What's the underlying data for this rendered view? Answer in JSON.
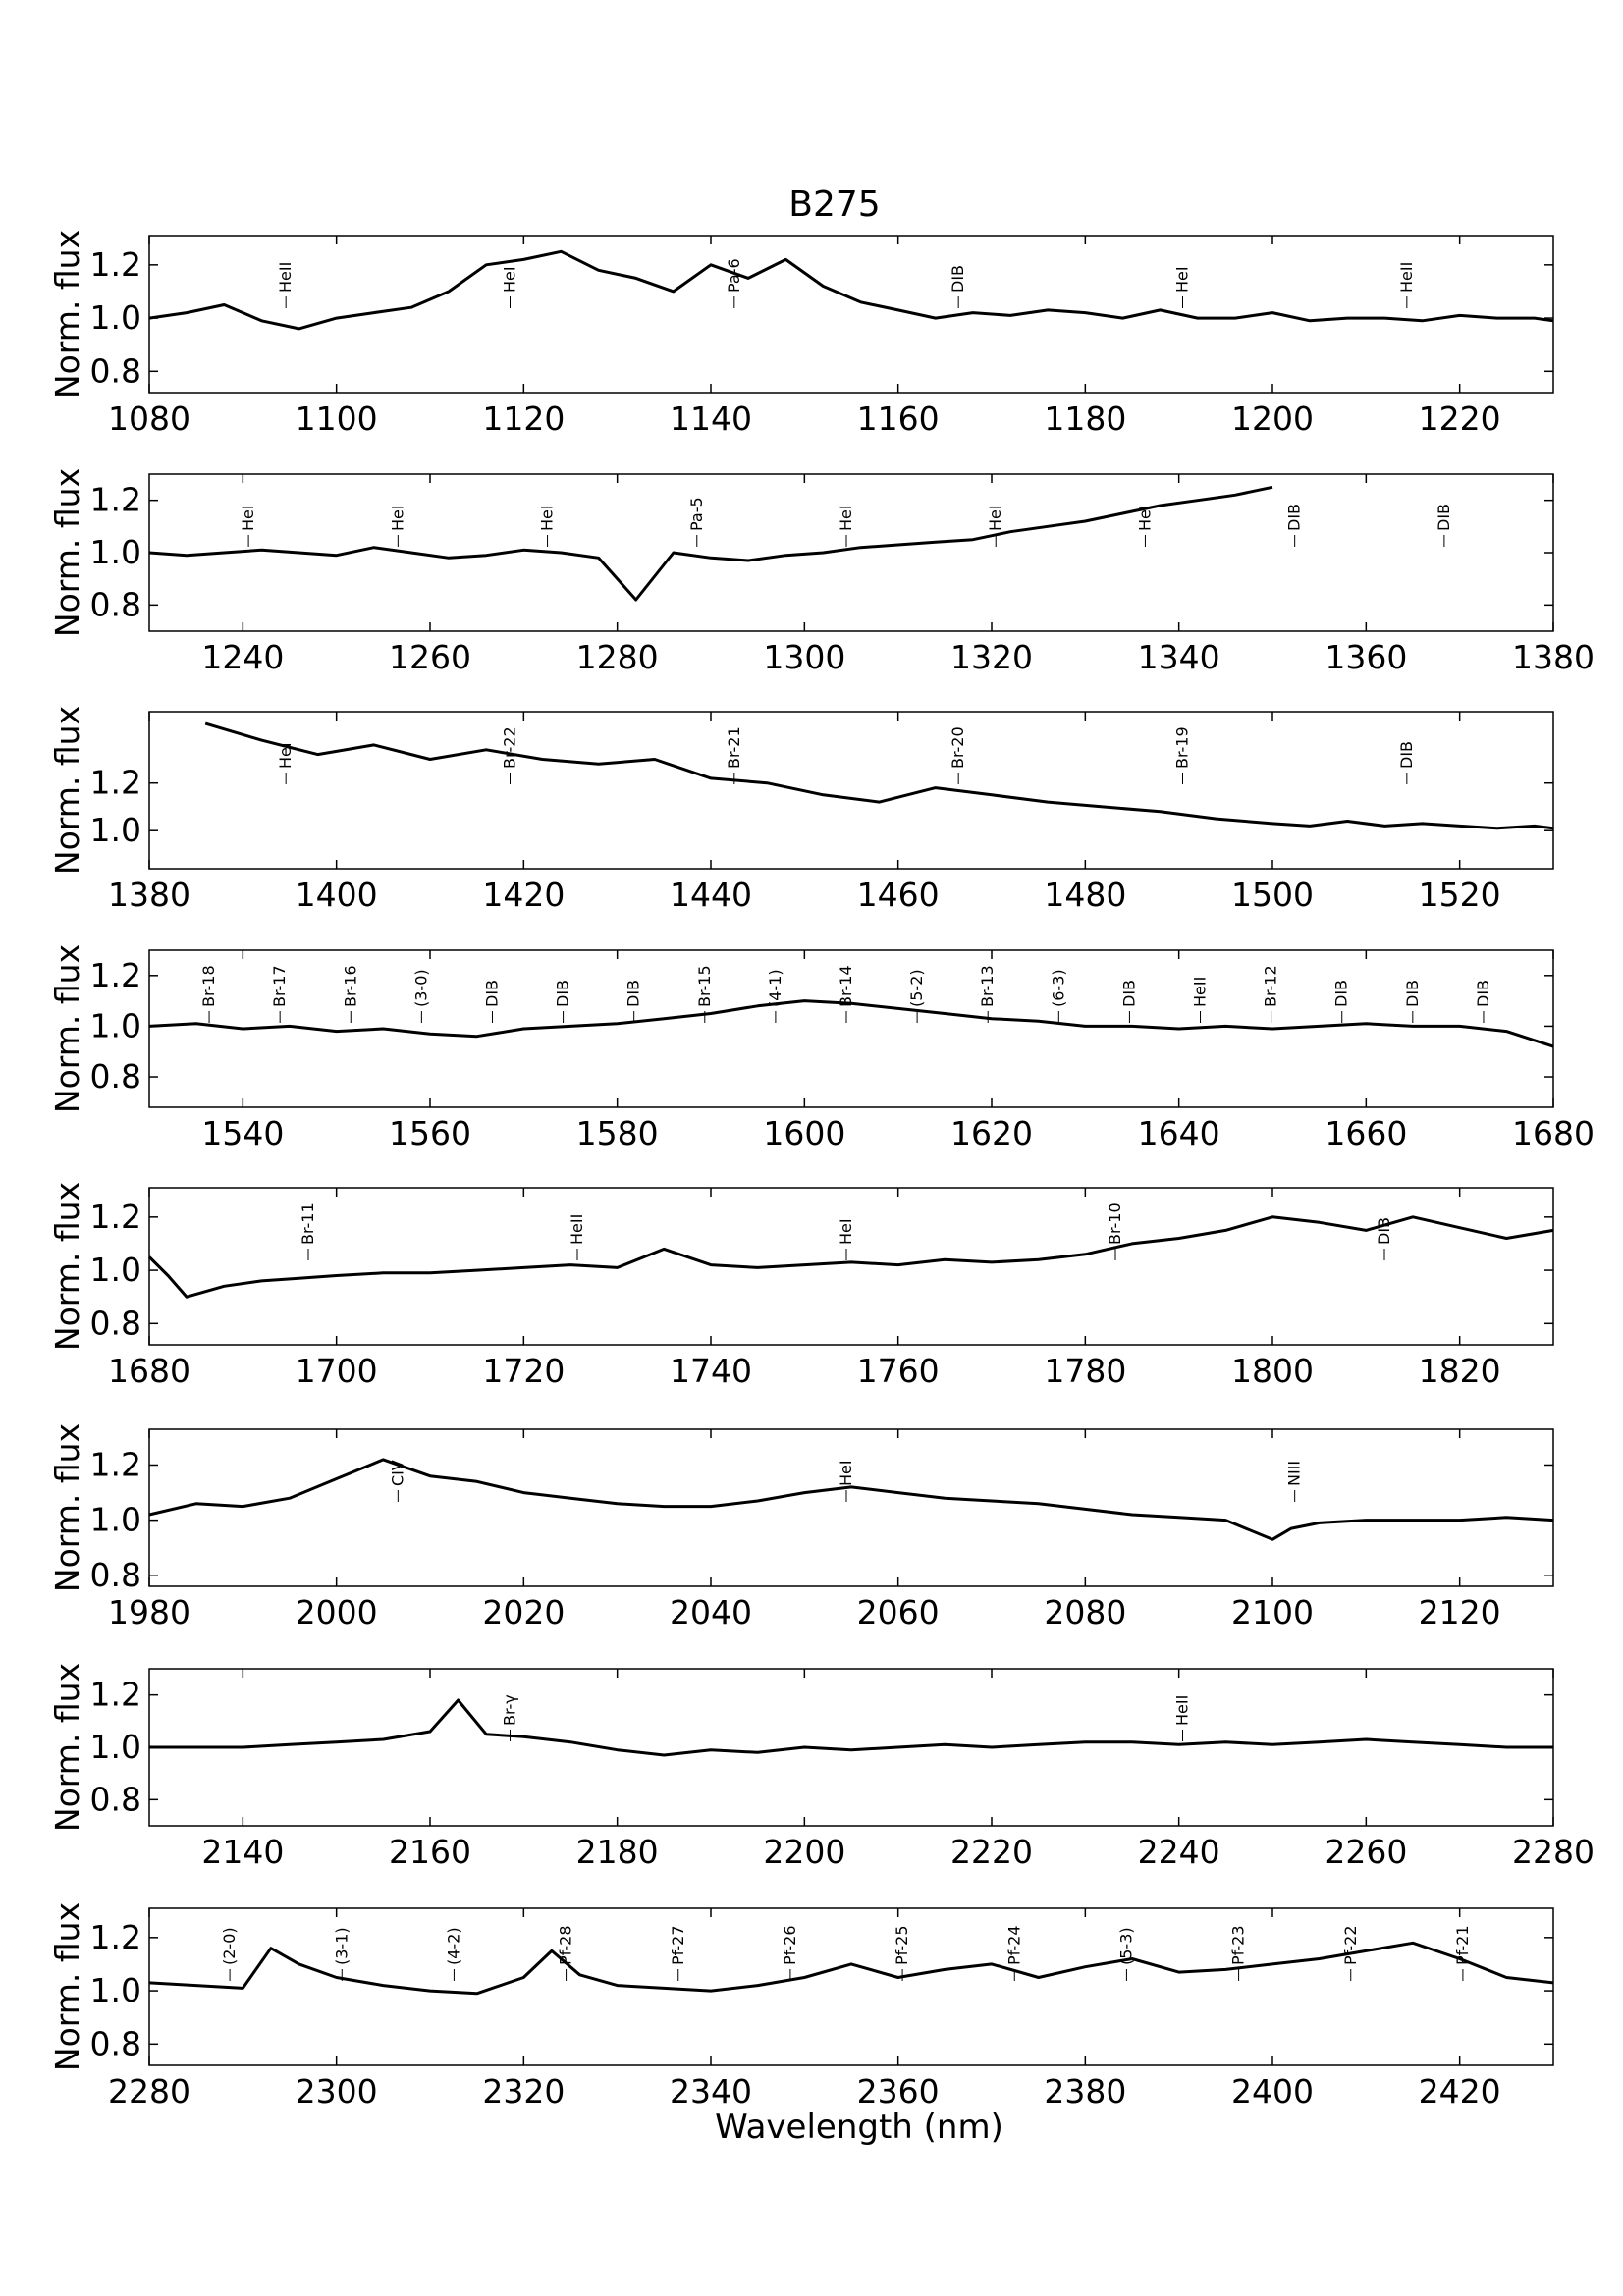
{
  "chart_data": {
    "type": "line",
    "title": "B275",
    "xlabel": "Wavelength (nm)",
    "ylabel": "Norm. flux",
    "grid": false,
    "line_color": "#000000",
    "panels": [
      {
        "xlim": [
          1080,
          1230
        ],
        "ylim": [
          0.72,
          1.31
        ],
        "xticks": [
          "1080",
          "1100",
          "1120",
          "1140",
          "1160",
          "1180",
          "1200",
          "1220"
        ],
        "yticks": [
          "0.8",
          "1.0",
          "1.2"
        ],
        "x": [
          1080,
          1084,
          1088,
          1092,
          1096,
          1100,
          1104,
          1108,
          1112,
          1116,
          1120,
          1124,
          1128,
          1132,
          1136,
          1140,
          1144,
          1148,
          1152,
          1156,
          1160,
          1164,
          1168,
          1172,
          1176,
          1180,
          1184,
          1188,
          1192,
          1196,
          1200,
          1204,
          1208,
          1212,
          1216,
          1220,
          1224,
          1228,
          1230
        ],
        "y": [
          1.0,
          1.02,
          1.05,
          0.99,
          0.96,
          1.0,
          1.02,
          1.04,
          1.1,
          1.2,
          1.22,
          1.25,
          1.18,
          1.15,
          1.1,
          1.2,
          1.15,
          1.22,
          1.12,
          1.06,
          1.03,
          1.0,
          1.02,
          1.01,
          1.03,
          1.02,
          1.0,
          1.03,
          1.0,
          1.0,
          1.02,
          0.99,
          1.0,
          1.0,
          0.99,
          1.01,
          1.0,
          1.0,
          0.99
        ],
        "annotations": [
          "HeII",
          "HeI",
          "Pa-6",
          "DIB",
          "HeI",
          "HeII"
        ]
      },
      {
        "xlim": [
          1230,
          1380
        ],
        "ylim": [
          0.7,
          1.3
        ],
        "xticks": [
          "1240",
          "1260",
          "1280",
          "1300",
          "1320",
          "1340",
          "1360",
          "1380"
        ],
        "yticks": [
          "0.8",
          "1.0",
          "1.2"
        ],
        "x": [
          1230,
          1234,
          1238,
          1242,
          1246,
          1250,
          1254,
          1258,
          1262,
          1266,
          1270,
          1274,
          1278,
          1282,
          1286,
          1290,
          1294,
          1298,
          1302,
          1306,
          1310,
          1314,
          1318,
          1322,
          1326,
          1330,
          1334,
          1338,
          1342,
          1346,
          1350
        ],
        "y": [
          1.0,
          0.99,
          1.0,
          1.01,
          1.0,
          0.99,
          1.02,
          1.0,
          0.98,
          0.99,
          1.01,
          1.0,
          0.98,
          0.82,
          1.0,
          0.98,
          0.97,
          0.99,
          1.0,
          1.02,
          1.03,
          1.04,
          1.05,
          1.08,
          1.1,
          1.12,
          1.15,
          1.18,
          1.2,
          1.22,
          1.25
        ],
        "annotations": [
          "HeI",
          "HeI",
          "HeI",
          "Pa-5",
          "HeI",
          "HeI",
          "HeI",
          "DIB",
          "DIB"
        ]
      },
      {
        "xlim": [
          1380,
          1530
        ],
        "ylim": [
          0.84,
          1.5
        ],
        "xticks": [
          "1380",
          "1400",
          "1420",
          "1440",
          "1460",
          "1480",
          "1500",
          "1520"
        ],
        "yticks": [
          "1.0",
          "1.2"
        ],
        "x": [
          1386,
          1392,
          1398,
          1404,
          1410,
          1416,
          1422,
          1428,
          1434,
          1440,
          1446,
          1452,
          1458,
          1464,
          1470,
          1476,
          1482,
          1488,
          1494,
          1500,
          1504,
          1508,
          1512,
          1516,
          1520,
          1524,
          1528,
          1530
        ],
        "y": [
          1.45,
          1.38,
          1.32,
          1.36,
          1.3,
          1.34,
          1.3,
          1.28,
          1.3,
          1.22,
          1.2,
          1.15,
          1.12,
          1.18,
          1.15,
          1.12,
          1.1,
          1.08,
          1.05,
          1.03,
          1.02,
          1.04,
          1.02,
          1.03,
          1.02,
          1.01,
          1.02,
          1.01
        ],
        "annotations": [
          "HeI",
          "Br-22",
          "Br-21",
          "Br-20",
          "Br-19",
          "DIB"
        ]
      },
      {
        "xlim": [
          1530,
          1680
        ],
        "ylim": [
          0.68,
          1.3
        ],
        "xticks": [
          "1540",
          "1560",
          "1580",
          "1600",
          "1620",
          "1640",
          "1660",
          "1680"
        ],
        "yticks": [
          "0.8",
          "1.0",
          "1.2"
        ],
        "x": [
          1530,
          1535,
          1540,
          1545,
          1550,
          1555,
          1560,
          1565,
          1570,
          1575,
          1580,
          1585,
          1590,
          1595,
          1600,
          1605,
          1610,
          1615,
          1620,
          1625,
          1630,
          1635,
          1640,
          1645,
          1650,
          1655,
          1660,
          1665,
          1670,
          1675,
          1680
        ],
        "y": [
          1.0,
          1.01,
          0.99,
          1.0,
          0.98,
          0.99,
          0.97,
          0.96,
          0.99,
          1.0,
          1.01,
          1.03,
          1.05,
          1.08,
          1.1,
          1.09,
          1.07,
          1.05,
          1.03,
          1.02,
          1.0,
          1.0,
          0.99,
          1.0,
          0.99,
          1.0,
          1.01,
          1.0,
          1.0,
          0.98,
          0.92
        ],
        "annotations": [
          "Br-18",
          "Br-17",
          "Br-16",
          "(3-0)",
          "DIB",
          "DIB",
          "DIB",
          "Br-15",
          "(4-1)",
          "Br-14",
          "(5-2)",
          "Br-13",
          "(6-3)",
          "DIB",
          "HeII",
          "Br-12",
          "DIB",
          "DIB",
          "DIB"
        ]
      },
      {
        "xlim": [
          1680,
          1830
        ],
        "ylim": [
          0.72,
          1.31
        ],
        "xticks": [
          "1680",
          "1700",
          "1720",
          "1740",
          "1760",
          "1780",
          "1800",
          "1820"
        ],
        "yticks": [
          "0.8",
          "1.0",
          "1.2"
        ],
        "x": [
          1680,
          1682,
          1684,
          1688,
          1692,
          1696,
          1700,
          1705,
          1710,
          1715,
          1720,
          1725,
          1730,
          1735,
          1740,
          1745,
          1750,
          1755,
          1760,
          1765,
          1770,
          1775,
          1780,
          1785,
          1790,
          1795,
          1800,
          1805,
          1810,
          1815,
          1820,
          1825,
          1830
        ],
        "y": [
          1.05,
          0.98,
          0.9,
          0.94,
          0.96,
          0.97,
          0.98,
          0.99,
          0.99,
          1.0,
          1.01,
          1.02,
          1.01,
          1.08,
          1.02,
          1.01,
          1.02,
          1.03,
          1.02,
          1.04,
          1.03,
          1.04,
          1.06,
          1.1,
          1.12,
          1.15,
          1.2,
          1.18,
          1.15,
          1.2,
          1.16,
          1.12,
          1.15
        ],
        "annotations": [
          "Br-11",
          "HeII",
          "HeI",
          "Br-10",
          "DIB"
        ]
      },
      {
        "xlim": [
          1980,
          2130
        ],
        "ylim": [
          0.76,
          1.33
        ],
        "xticks": [
          "1980",
          "2000",
          "2020",
          "2040",
          "2060",
          "2080",
          "2100",
          "2120"
        ],
        "yticks": [
          "0.8",
          "1.0",
          "1.2"
        ],
        "x": [
          1980,
          1985,
          1990,
          1995,
          2000,
          2005,
          2010,
          2015,
          2020,
          2025,
          2030,
          2035,
          2040,
          2045,
          2050,
          2055,
          2060,
          2065,
          2070,
          2075,
          2080,
          2085,
          2090,
          2095,
          2100,
          2102,
          2105,
          2110,
          2115,
          2120,
          2125,
          2130
        ],
        "y": [
          1.02,
          1.06,
          1.05,
          1.08,
          1.15,
          1.22,
          1.16,
          1.14,
          1.1,
          1.08,
          1.06,
          1.05,
          1.05,
          1.07,
          1.1,
          1.12,
          1.1,
          1.08,
          1.07,
          1.06,
          1.04,
          1.02,
          1.01,
          1.0,
          0.93,
          0.97,
          0.99,
          1.0,
          1.0,
          1.0,
          1.01,
          1.0
        ],
        "annotations": [
          "CIV",
          "HeI",
          "NIII"
        ]
      },
      {
        "xlim": [
          2130,
          2280
        ],
        "ylim": [
          0.7,
          1.3
        ],
        "xticks": [
          "2140",
          "2160",
          "2180",
          "2200",
          "2220",
          "2240",
          "2260",
          "2280"
        ],
        "yticks": [
          "0.8",
          "1.0",
          "1.2"
        ],
        "x": [
          2130,
          2135,
          2140,
          2145,
          2150,
          2155,
          2160,
          2163,
          2166,
          2170,
          2175,
          2180,
          2185,
          2190,
          2195,
          2200,
          2205,
          2210,
          2215,
          2220,
          2225,
          2230,
          2235,
          2240,
          2245,
          2250,
          2255,
          2260,
          2265,
          2270,
          2275,
          2280
        ],
        "y": [
          1.0,
          1.0,
          1.0,
          1.01,
          1.02,
          1.03,
          1.06,
          1.18,
          1.05,
          1.04,
          1.02,
          0.99,
          0.97,
          0.99,
          0.98,
          1.0,
          0.99,
          1.0,
          1.01,
          1.0,
          1.01,
          1.02,
          1.02,
          1.01,
          1.02,
          1.01,
          1.02,
          1.03,
          1.02,
          1.01,
          1.0,
          1.0
        ],
        "annotations": [
          "Br-γ",
          "HeII"
        ]
      },
      {
        "xlim": [
          2280,
          2430
        ],
        "ylim": [
          0.72,
          1.31
        ],
        "xticks": [
          "2280",
          "2300",
          "2320",
          "2340",
          "2360",
          "2380",
          "2400",
          "2420"
        ],
        "yticks": [
          "0.8",
          "1.0",
          "1.2"
        ],
        "x": [
          2280,
          2285,
          2290,
          2293,
          2296,
          2300,
          2305,
          2310,
          2315,
          2320,
          2323,
          2326,
          2330,
          2335,
          2340,
          2345,
          2350,
          2355,
          2360,
          2365,
          2370,
          2375,
          2380,
          2385,
          2390,
          2395,
          2400,
          2405,
          2410,
          2415,
          2420,
          2425,
          2430
        ],
        "y": [
          1.03,
          1.02,
          1.01,
          1.16,
          1.1,
          1.05,
          1.02,
          1.0,
          0.99,
          1.05,
          1.15,
          1.06,
          1.02,
          1.01,
          1.0,
          1.02,
          1.05,
          1.1,
          1.05,
          1.08,
          1.1,
          1.05,
          1.09,
          1.12,
          1.07,
          1.08,
          1.1,
          1.12,
          1.15,
          1.18,
          1.12,
          1.05,
          1.03
        ],
        "annotations": [
          "(2-0)",
          "(3-1)",
          "(4-2)",
          "Pf-28",
          "Pf-27",
          "Pf-26",
          "Pf-25",
          "Pf-24",
          "(5-3)",
          "Pf-23",
          "Pf-22",
          "Pf-21"
        ]
      }
    ]
  }
}
